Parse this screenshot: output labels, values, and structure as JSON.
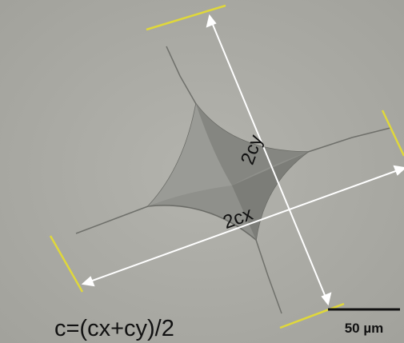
{
  "labels": {
    "cy": "2cy",
    "cx": "2cx",
    "formula": "c=(cx+cy)/2",
    "scale": "50 µm"
  }
}
